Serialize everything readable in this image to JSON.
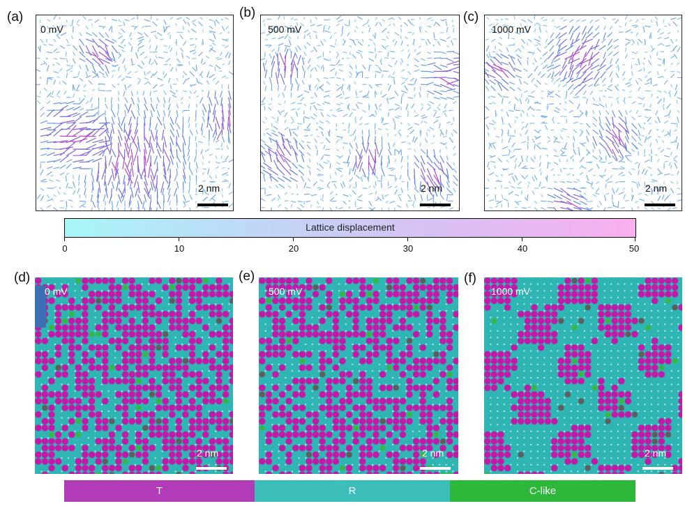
{
  "panels": [
    {
      "label": "(a)",
      "voltage": "0  mV",
      "scale": "2 nm"
    },
    {
      "label": "(b)",
      "voltage": "500 mV",
      "scale": "2 nm"
    },
    {
      "label": "(c)",
      "voltage": "1000 mV",
      "scale": "2 nm"
    },
    {
      "label": "(d)",
      "voltage": "0  mV",
      "scale": "2 nm"
    },
    {
      "label": "(e)",
      "voltage": "500  mV",
      "scale": "2 nm"
    },
    {
      "label": "(f)",
      "voltage": "1000 mV",
      "scale": "2 nm"
    }
  ],
  "colorbar": {
    "title": "Lattice displacement",
    "ticks": [
      "0",
      "10",
      "20",
      "30",
      "40",
      "50"
    ],
    "min": 0,
    "max": 50,
    "color_low": "#a8f6f8",
    "color_high": "#f9aff0"
  },
  "legend": [
    {
      "label": "T",
      "color": "#b23cb7"
    },
    {
      "label": "R",
      "color": "#3cbebb"
    },
    {
      "label": "C-like",
      "color": "#2eb839"
    }
  ],
  "colors": {
    "arrow_low": "#9ee7f5",
    "arrow_mid": "#5a83e6",
    "arrow_high": "#c63dcc",
    "phase_T": "#c419a8",
    "phase_R": "#2fb6b4",
    "phase_C": "#36b83f",
    "phase_dark": "#5e5e5e"
  }
}
